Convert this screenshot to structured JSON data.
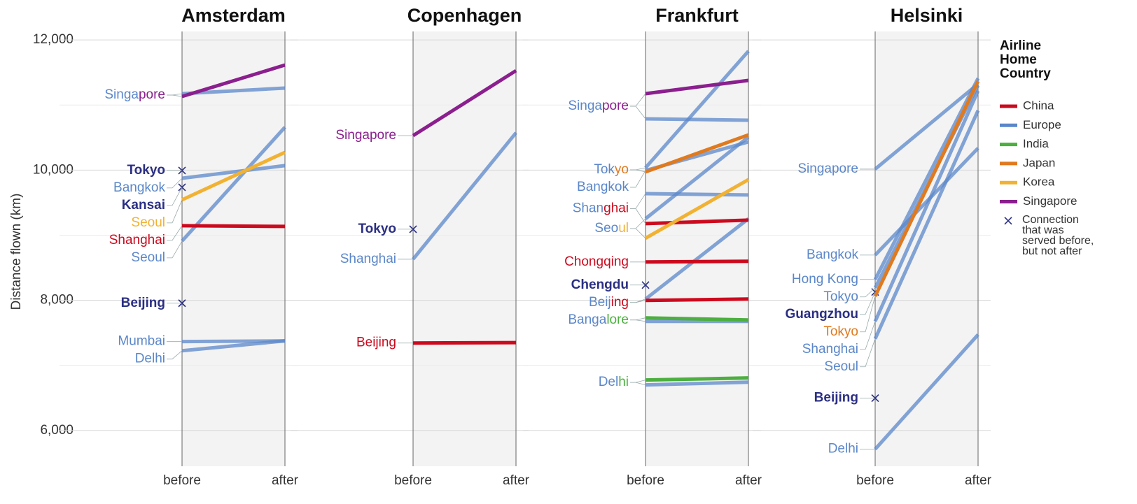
{
  "chart_data": [
    {
      "type": "line",
      "title": "Amsterdam",
      "categories": [
        "before",
        "after"
      ],
      "destinations": [
        {
          "name": "Singapore",
          "lines": [
            {
              "airline": "Europe",
              "values": [
                11174,
                11260
              ]
            },
            {
              "airline": "Singapore",
              "values": [
                11131,
                11614
              ]
            }
          ]
        },
        {
          "name": "Tokyo",
          "lines": [
            {
              "marker": "x",
              "values": [
                9994,
                null
              ]
            }
          ]
        },
        {
          "name": "Bangkok",
          "lines": [
            {
              "airline": "Europe",
              "values": [
                9875,
                10069
              ]
            }
          ]
        },
        {
          "name": "Kansai",
          "lines": [
            {
              "marker": "x",
              "values": [
                9736,
                null
              ]
            }
          ]
        },
        {
          "name": "Seoul",
          "lines": [
            {
              "airline": "Korea",
              "values": [
                9543,
                10273
              ]
            }
          ]
        },
        {
          "name": "Shanghai",
          "lines": [
            {
              "airline": "China",
              "values": [
                9146,
                9135
              ]
            }
          ]
        },
        {
          "name": "Seoul",
          "lines": [
            {
              "airline": "Europe",
              "values": [
                8910,
                10659
              ]
            }
          ]
        },
        {
          "name": "Beijing",
          "lines": [
            {
              "marker": "x",
              "values": [
                7955,
                null
              ]
            }
          ]
        },
        {
          "name": "Mumbai",
          "lines": [
            {
              "airline": "Europe",
              "values": [
                7365,
                7376
              ]
            }
          ]
        },
        {
          "name": "Delhi",
          "lines": [
            {
              "airline": "Europe",
              "values": [
                7225,
                7376
              ]
            }
          ]
        }
      ]
    },
    {
      "type": "line",
      "title": "Copenhagen",
      "categories": [
        "before",
        "after"
      ],
      "destinations": [
        {
          "name": "Singapore",
          "lines": [
            {
              "airline": "Singapore",
              "values": [
                10530,
                11528
              ]
            }
          ]
        },
        {
          "name": "Tokyo",
          "lines": [
            {
              "marker": "x",
              "values": [
                9092,
                null
              ]
            }
          ]
        },
        {
          "name": "Shanghai",
          "lines": [
            {
              "airline": "Europe",
              "values": [
                8631,
                10573
              ]
            }
          ]
        },
        {
          "name": "Beijing",
          "lines": [
            {
              "airline": "China",
              "values": [
                7343,
                7350
              ]
            }
          ]
        }
      ]
    },
    {
      "type": "line",
      "title": "Frankfurt",
      "categories": [
        "before",
        "after"
      ],
      "destinations": [
        {
          "name": "Singapore",
          "lines": [
            {
              "airline": "Europe",
              "values": [
                10788,
                10766
              ]
            },
            {
              "airline": "Singapore",
              "values": [
                11174,
                11378
              ]
            }
          ]
        },
        {
          "name": "Tokyo",
          "lines": [
            {
              "airline": "Europe",
              "values": [
                10036,
                11828
              ]
            },
            {
              "airline": "Japan",
              "values": [
                9972,
                10541
              ]
            }
          ]
        },
        {
          "name": "Bangkok",
          "lines": [
            {
              "airline": "Europe",
              "values": [
                9994,
                10433
              ]
            }
          ]
        },
        {
          "name": "Shanghai",
          "lines": [
            {
              "airline": "Europe",
              "values": [
                9639,
                9618
              ]
            },
            {
              "airline": "China",
              "values": [
                9178,
                9232
              ]
            }
          ]
        },
        {
          "name": "Seoul",
          "lines": [
            {
              "airline": "Europe",
              "values": [
                9253,
                10509
              ]
            },
            {
              "airline": "Korea",
              "values": [
                8953,
                9854
              ]
            }
          ]
        },
        {
          "name": "Chongqing",
          "lines": [
            {
              "airline": "China",
              "values": [
                8588,
                8599
              ]
            }
          ]
        },
        {
          "name": "Chengdu",
          "lines": [
            {
              "marker": "x",
              "values": [
                8234,
                null
              ]
            }
          ]
        },
        {
          "name": "Beijing",
          "lines": [
            {
              "airline": "Europe",
              "values": [
                8019,
                9253
              ]
            },
            {
              "airline": "China",
              "values": [
                7998,
                8019
              ]
            }
          ]
        },
        {
          "name": "Bangalore",
          "lines": [
            {
              "airline": "Europe",
              "values": [
                7676,
                7676
              ]
            },
            {
              "airline": "India",
              "values": [
                7730,
                7697
              ]
            }
          ]
        },
        {
          "name": "Delhi",
          "lines": [
            {
              "airline": "Europe",
              "values": [
                6700,
                6742
              ]
            },
            {
              "airline": "India",
              "values": [
                6775,
                6807
              ]
            }
          ]
        }
      ]
    },
    {
      "type": "line",
      "title": "Helsinki",
      "categories": [
        "before",
        "after"
      ],
      "destinations": [
        {
          "name": "Singapore",
          "lines": [
            {
              "airline": "Europe",
              "values": [
                10015,
                11324
              ]
            }
          ]
        },
        {
          "name": "Bangkok",
          "lines": [
            {
              "airline": "Europe",
              "values": [
                8695,
                10337
              ]
            }
          ]
        },
        {
          "name": "Hong Kong",
          "lines": [
            {
              "airline": "Europe",
              "values": [
                8320,
                11410
              ]
            }
          ]
        },
        {
          "name": "Tokyo",
          "lines": [
            {
              "airline": "Europe",
              "values": [
                8191,
                11300
              ]
            }
          ]
        },
        {
          "name": "Guangzhou",
          "lines": [
            {
              "marker": "x",
              "values": [
                8127,
                null
              ]
            }
          ]
        },
        {
          "name": "Tokyo",
          "lines": [
            {
              "airline": "Japan",
              "values": [
                8062,
                11367
              ]
            }
          ]
        },
        {
          "name": "Shanghai",
          "lines": [
            {
              "airline": "Europe",
              "values": [
                7676,
                11217
              ]
            }
          ]
        },
        {
          "name": "Seoul",
          "lines": [
            {
              "airline": "Europe",
              "values": [
                7408,
                10916
              ]
            }
          ]
        },
        {
          "name": "Beijing",
          "lines": [
            {
              "marker": "x",
              "values": [
                6496,
                null
              ]
            }
          ]
        },
        {
          "name": "Delhi",
          "lines": [
            {
              "airline": "Europe",
              "values": [
                5712,
                7472
              ]
            }
          ]
        }
      ]
    }
  ],
  "y_axis": {
    "label": "Distance flown (km)",
    "ylim": [
      5450,
      12130
    ],
    "yticks": [
      {
        "value": 6000,
        "label": "6,000"
      },
      {
        "value": 8000,
        "label": "8,000"
      },
      {
        "value": 10000,
        "label": "10,000"
      },
      {
        "value": 12000,
        "label": "12,000"
      }
    ],
    "minor": [
      7000,
      9000,
      11000
    ],
    "grid": true
  },
  "legend": {
    "title": "Airline Home Country",
    "items": [
      {
        "name": "China",
        "color": "#cc0a1e"
      },
      {
        "name": "Europe",
        "color": "#5b87c9"
      },
      {
        "name": "India",
        "color": "#4caf3f"
      },
      {
        "name": "Japan",
        "color": "#e07a1f"
      },
      {
        "name": "Korea",
        "color": "#f1b233"
      },
      {
        "name": "Singapore",
        "color": "#8b1f8e"
      },
      {
        "name": "Connection that was served before, but not after",
        "marker": "x",
        "color": "#2b2f83"
      }
    ]
  }
}
